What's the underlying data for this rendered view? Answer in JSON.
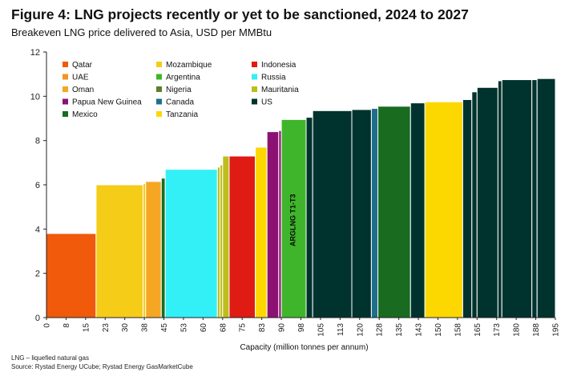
{
  "header": {
    "title": "Figure 4: LNG projects recently or yet to be sanctioned, 2024 to 2027",
    "subtitle": "Breakeven LNG price delivered to Asia, USD per MMBtu"
  },
  "footer": {
    "note": "LNG – liquefied natural gas",
    "source": "Source: Rystad Energy UCube; Rystad Energy GasMarketCube"
  },
  "chart_data": {
    "type": "bar",
    "title": "Figure 4: LNG projects recently or yet to be sanctioned, 2024 to 2027",
    "subtitle": "Breakeven LNG price delivered to Asia, USD per MMBtu",
    "xlabel": "Capacity (million tonnes per annum)",
    "ylabel": "",
    "xlim": [
      0,
      195
    ],
    "ylim": [
      0,
      12
    ],
    "x_ticks": [
      "0",
      "8",
      "15",
      "23",
      "30",
      "38",
      "45",
      "53",
      "60",
      "68",
      "75",
      "83",
      "90",
      "98",
      "105",
      "113",
      "120",
      "128",
      "135",
      "143",
      "150",
      "158",
      "165",
      "173",
      "180",
      "188",
      "195"
    ],
    "y_ticks": [
      0,
      2,
      4,
      6,
      8,
      10,
      12
    ],
    "grid": false,
    "legend_position": "top-left",
    "legend": [
      {
        "name": "Qatar",
        "color": "#F05A0A"
      },
      {
        "name": "Mozambique",
        "color": "#F5CC18"
      },
      {
        "name": "Indonesia",
        "color": "#E01B14"
      },
      {
        "name": "UAE",
        "color": "#F39322"
      },
      {
        "name": "Argentina",
        "color": "#3FB52B"
      },
      {
        "name": "Russia",
        "color": "#33F0F7"
      },
      {
        "name": "Oman",
        "color": "#F5A623"
      },
      {
        "name": "Nigeria",
        "color": "#5C7F2E"
      },
      {
        "name": "Mauritania",
        "color": "#BDBD1E"
      },
      {
        "name": "Papua New Guinea",
        "color": "#8B1273"
      },
      {
        "name": "Canada",
        "color": "#1F6E8C"
      },
      {
        "name": "US",
        "color": "#00332E"
      },
      {
        "name": "Mexico",
        "color": "#196B20"
      },
      {
        "name": "Tanzania",
        "color": "#FCD800"
      }
    ],
    "annotations": [
      {
        "text": "ARGLNG T1-T3"
      }
    ],
    "bars": [
      {
        "x0": 0,
        "x1": 19,
        "y": 3.8,
        "country": "Qatar"
      },
      {
        "x0": 19,
        "x1": 37,
        "y": 6.0,
        "country": "Mozambique"
      },
      {
        "x0": 37,
        "x1": 38,
        "y": 6.05,
        "country": "Mozambique"
      },
      {
        "x0": 38,
        "x1": 44,
        "y": 6.15,
        "country": "Oman"
      },
      {
        "x0": 44,
        "x1": 45.5,
        "y": 6.3,
        "country": "Mexico"
      },
      {
        "x0": 45.5,
        "x1": 65.5,
        "y": 6.7,
        "country": "Russia"
      },
      {
        "x0": 65.5,
        "x1": 66.5,
        "y": 6.8,
        "country": "Mauritania"
      },
      {
        "x0": 66.5,
        "x1": 67.5,
        "y": 6.9,
        "country": "Mauritania"
      },
      {
        "x0": 67.5,
        "x1": 70,
        "y": 7.3,
        "country": "Mauritania"
      },
      {
        "x0": 70,
        "x1": 80,
        "y": 7.3,
        "country": "Indonesia"
      },
      {
        "x0": 80,
        "x1": 84.5,
        "y": 7.7,
        "country": "Tanzania"
      },
      {
        "x0": 84.5,
        "x1": 89,
        "y": 8.4,
        "country": "Papua New Guinea"
      },
      {
        "x0": 89,
        "x1": 90,
        "y": 8.45,
        "country": "Papua New Guinea"
      },
      {
        "x0": 90,
        "x1": 99.5,
        "y": 8.95,
        "country": "Argentina"
      },
      {
        "x0": 99.5,
        "x1": 102,
        "y": 9.05,
        "country": "US"
      },
      {
        "x0": 102,
        "x1": 117,
        "y": 9.35,
        "country": "US"
      },
      {
        "x0": 117,
        "x1": 124.5,
        "y": 9.4,
        "country": "US"
      },
      {
        "x0": 124.5,
        "x1": 127,
        "y": 9.45,
        "country": "Canada"
      },
      {
        "x0": 127,
        "x1": 139.5,
        "y": 9.55,
        "country": "Mexico"
      },
      {
        "x0": 139.5,
        "x1": 145,
        "y": 9.7,
        "country": "US"
      },
      {
        "x0": 145,
        "x1": 159.5,
        "y": 9.75,
        "country": "Tanzania"
      },
      {
        "x0": 159.5,
        "x1": 163,
        "y": 9.85,
        "country": "US"
      },
      {
        "x0": 163,
        "x1": 165,
        "y": 10.2,
        "country": "US"
      },
      {
        "x0": 165,
        "x1": 173,
        "y": 10.4,
        "country": "US"
      },
      {
        "x0": 173,
        "x1": 174.5,
        "y": 10.7,
        "country": "US"
      },
      {
        "x0": 174.5,
        "x1": 186,
        "y": 10.75,
        "country": "US"
      },
      {
        "x0": 186,
        "x1": 188,
        "y": 10.75,
        "country": "US"
      },
      {
        "x0": 188,
        "x1": 195,
        "y": 10.8,
        "country": "US"
      }
    ]
  }
}
